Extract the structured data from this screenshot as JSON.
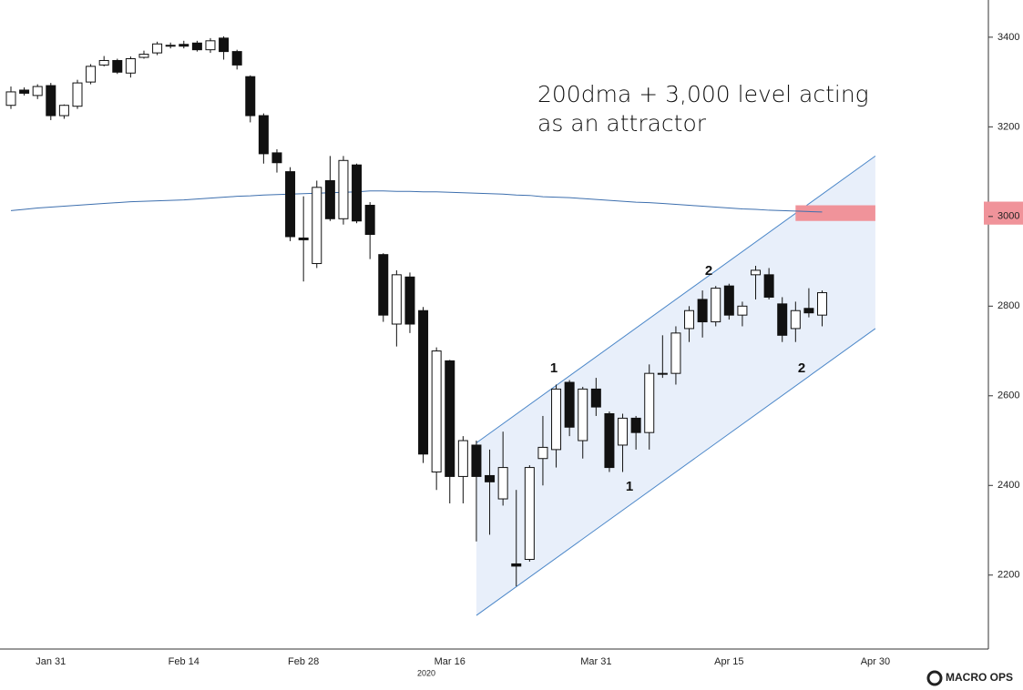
{
  "chart_data": {
    "type": "candlestick",
    "annotation": [
      "200dma + 3,000  level acting",
      "as an attractor"
    ],
    "wave_labels": [
      "1",
      "1",
      "2",
      "2"
    ],
    "year_label": "2020",
    "logo": "MACRO OPS",
    "categories": [
      null,
      null,
      null,
      "Jan 31",
      null,
      null,
      null,
      null,
      null,
      null,
      null,
      null,
      null,
      "Feb 14",
      null,
      null,
      null,
      null,
      null,
      null,
      null,
      null,
      "Feb 28",
      null,
      null,
      null,
      null,
      null,
      null,
      null,
      null,
      null,
      null,
      "Mar 16",
      null,
      null,
      null,
      null,
      null,
      null,
      null,
      null,
      null,
      null,
      "Mar 31",
      null,
      null,
      null,
      null,
      null,
      null,
      null,
      null,
      null,
      "Apr 15",
      null,
      null,
      null,
      null,
      null,
      null,
      null,
      null,
      null,
      null,
      "Apr 30",
      null,
      null,
      null,
      null,
      null,
      null,
      null,
      null
    ],
    "open": [
      3248,
      3282,
      3270,
      3292,
      3225,
      3246,
      3300,
      3338,
      3348,
      3320,
      3355,
      3365,
      3380,
      3384,
      3387,
      3372,
      3398,
      3368,
      3312,
      3225,
      3142,
      3100,
      2952,
      2895,
      3080,
      2995,
      3115,
      3025,
      2915,
      2760,
      2865,
      2790,
      2430,
      2678,
      2420,
      2490,
      2422,
      2370,
      2225,
      2235,
      2460,
      2480,
      2630,
      2500,
      2615,
      2560,
      2490,
      2550,
      2518,
      2648,
      2650,
      2750,
      2815,
      2765,
      2845,
      2780,
      2870,
      2870,
      2805,
      2750,
      2795,
      2780,
      null,
      null,
      null,
      null,
      null,
      null,
      null,
      null,
      null,
      null,
      null,
      null
    ],
    "high": [
      3290,
      3288,
      3295,
      3298,
      3250,
      3305,
      3340,
      3358,
      3352,
      3357,
      3370,
      3390,
      3388,
      3392,
      3392,
      3398,
      3402,
      3372,
      3315,
      3230,
      3150,
      3110,
      3045,
      3080,
      3135,
      3135,
      3118,
      3032,
      2918,
      2880,
      2875,
      2798,
      2708,
      2680,
      2510,
      2500,
      2480,
      2520,
      2390,
      2445,
      2555,
      2625,
      2635,
      2620,
      2640,
      2565,
      2560,
      2555,
      2670,
      2735,
      2755,
      2800,
      2835,
      2845,
      2850,
      2810,
      2890,
      2885,
      2820,
      2810,
      2840,
      2835,
      null,
      null,
      null,
      null,
      null,
      null,
      null,
      null,
      null,
      null,
      null,
      null
    ],
    "low": [
      3240,
      3270,
      3262,
      3215,
      3218,
      3240,
      3295,
      3335,
      3318,
      3310,
      3352,
      3360,
      3375,
      3375,
      3368,
      3365,
      3350,
      3328,
      3210,
      3118,
      3098,
      2945,
      2855,
      2885,
      2990,
      2982,
      2985,
      2905,
      2765,
      2710,
      2740,
      2450,
      2390,
      2360,
      2360,
      2275,
      2290,
      2355,
      2175,
      2230,
      2400,
      2440,
      2510,
      2460,
      2555,
      2430,
      2430,
      2480,
      2480,
      2640,
      2625,
      2720,
      2730,
      2755,
      2770,
      2755,
      2815,
      2815,
      2720,
      2720,
      2775,
      2755,
      null,
      null,
      null,
      null,
      null,
      null,
      null,
      null,
      null,
      null,
      null,
      null
    ],
    "close": [
      3278,
      3275,
      3290,
      3225,
      3248,
      3298,
      3335,
      3348,
      3322,
      3352,
      3362,
      3385,
      3382,
      3380,
      3372,
      3392,
      3368,
      3338,
      3225,
      3140,
      3120,
      2955,
      2948,
      3065,
      2995,
      3125,
      2990,
      2960,
      2780,
      2870,
      2760,
      2470,
      2700,
      2420,
      2500,
      2420,
      2408,
      2440,
      2220,
      2440,
      2485,
      2615,
      2530,
      2615,
      2575,
      2440,
      2550,
      2518,
      2650,
      2650,
      2740,
      2790,
      2765,
      2840,
      2780,
      2800,
      2880,
      2820,
      2735,
      2790,
      2785,
      2830,
      null,
      null,
      null,
      null,
      null,
      null,
      null,
      null,
      null,
      null,
      null,
      null
    ],
    "up_color": "#ffffff",
    "down_color": "#111111",
    "moving_average": {
      "color": "#3d6fae",
      "values": [
        3013,
        3016,
        3019,
        3021,
        3023,
        3025,
        3027,
        3029,
        3031,
        3033,
        3034,
        3035,
        3036,
        3037,
        3039,
        3041,
        3043,
        3045,
        3046,
        3048,
        3049,
        3050,
        3051,
        3052,
        3053,
        3054,
        3055,
        3057,
        3057,
        3056,
        3056,
        3055,
        3055,
        3054,
        3053,
        3052,
        3051,
        3050,
        3048,
        3047,
        3044,
        3043,
        3042,
        3040,
        3038,
        3036,
        3034,
        3032,
        3031,
        3029,
        3027,
        3025,
        3023,
        3021,
        3019,
        3017,
        3016,
        3014,
        3013,
        3012,
        3011,
        3010,
        null,
        null,
        null,
        null,
        null,
        null,
        null,
        null,
        null,
        null,
        null,
        null
      ]
    },
    "channel": {
      "from": 35,
      "to": 65,
      "upper": [
        2495,
        3135
      ],
      "lower": [
        2110,
        2750
      ],
      "color": "#4a86c8",
      "fill": "#e8effa"
    },
    "zone": {
      "from": 59,
      "to": 65,
      "range": [
        2990,
        3025
      ],
      "color": "#f0939a"
    },
    "ylim": [
      2035,
      3483
    ],
    "yticks": [
      2200,
      2400,
      2600,
      2800,
      3000,
      3200,
      3400
    ]
  }
}
